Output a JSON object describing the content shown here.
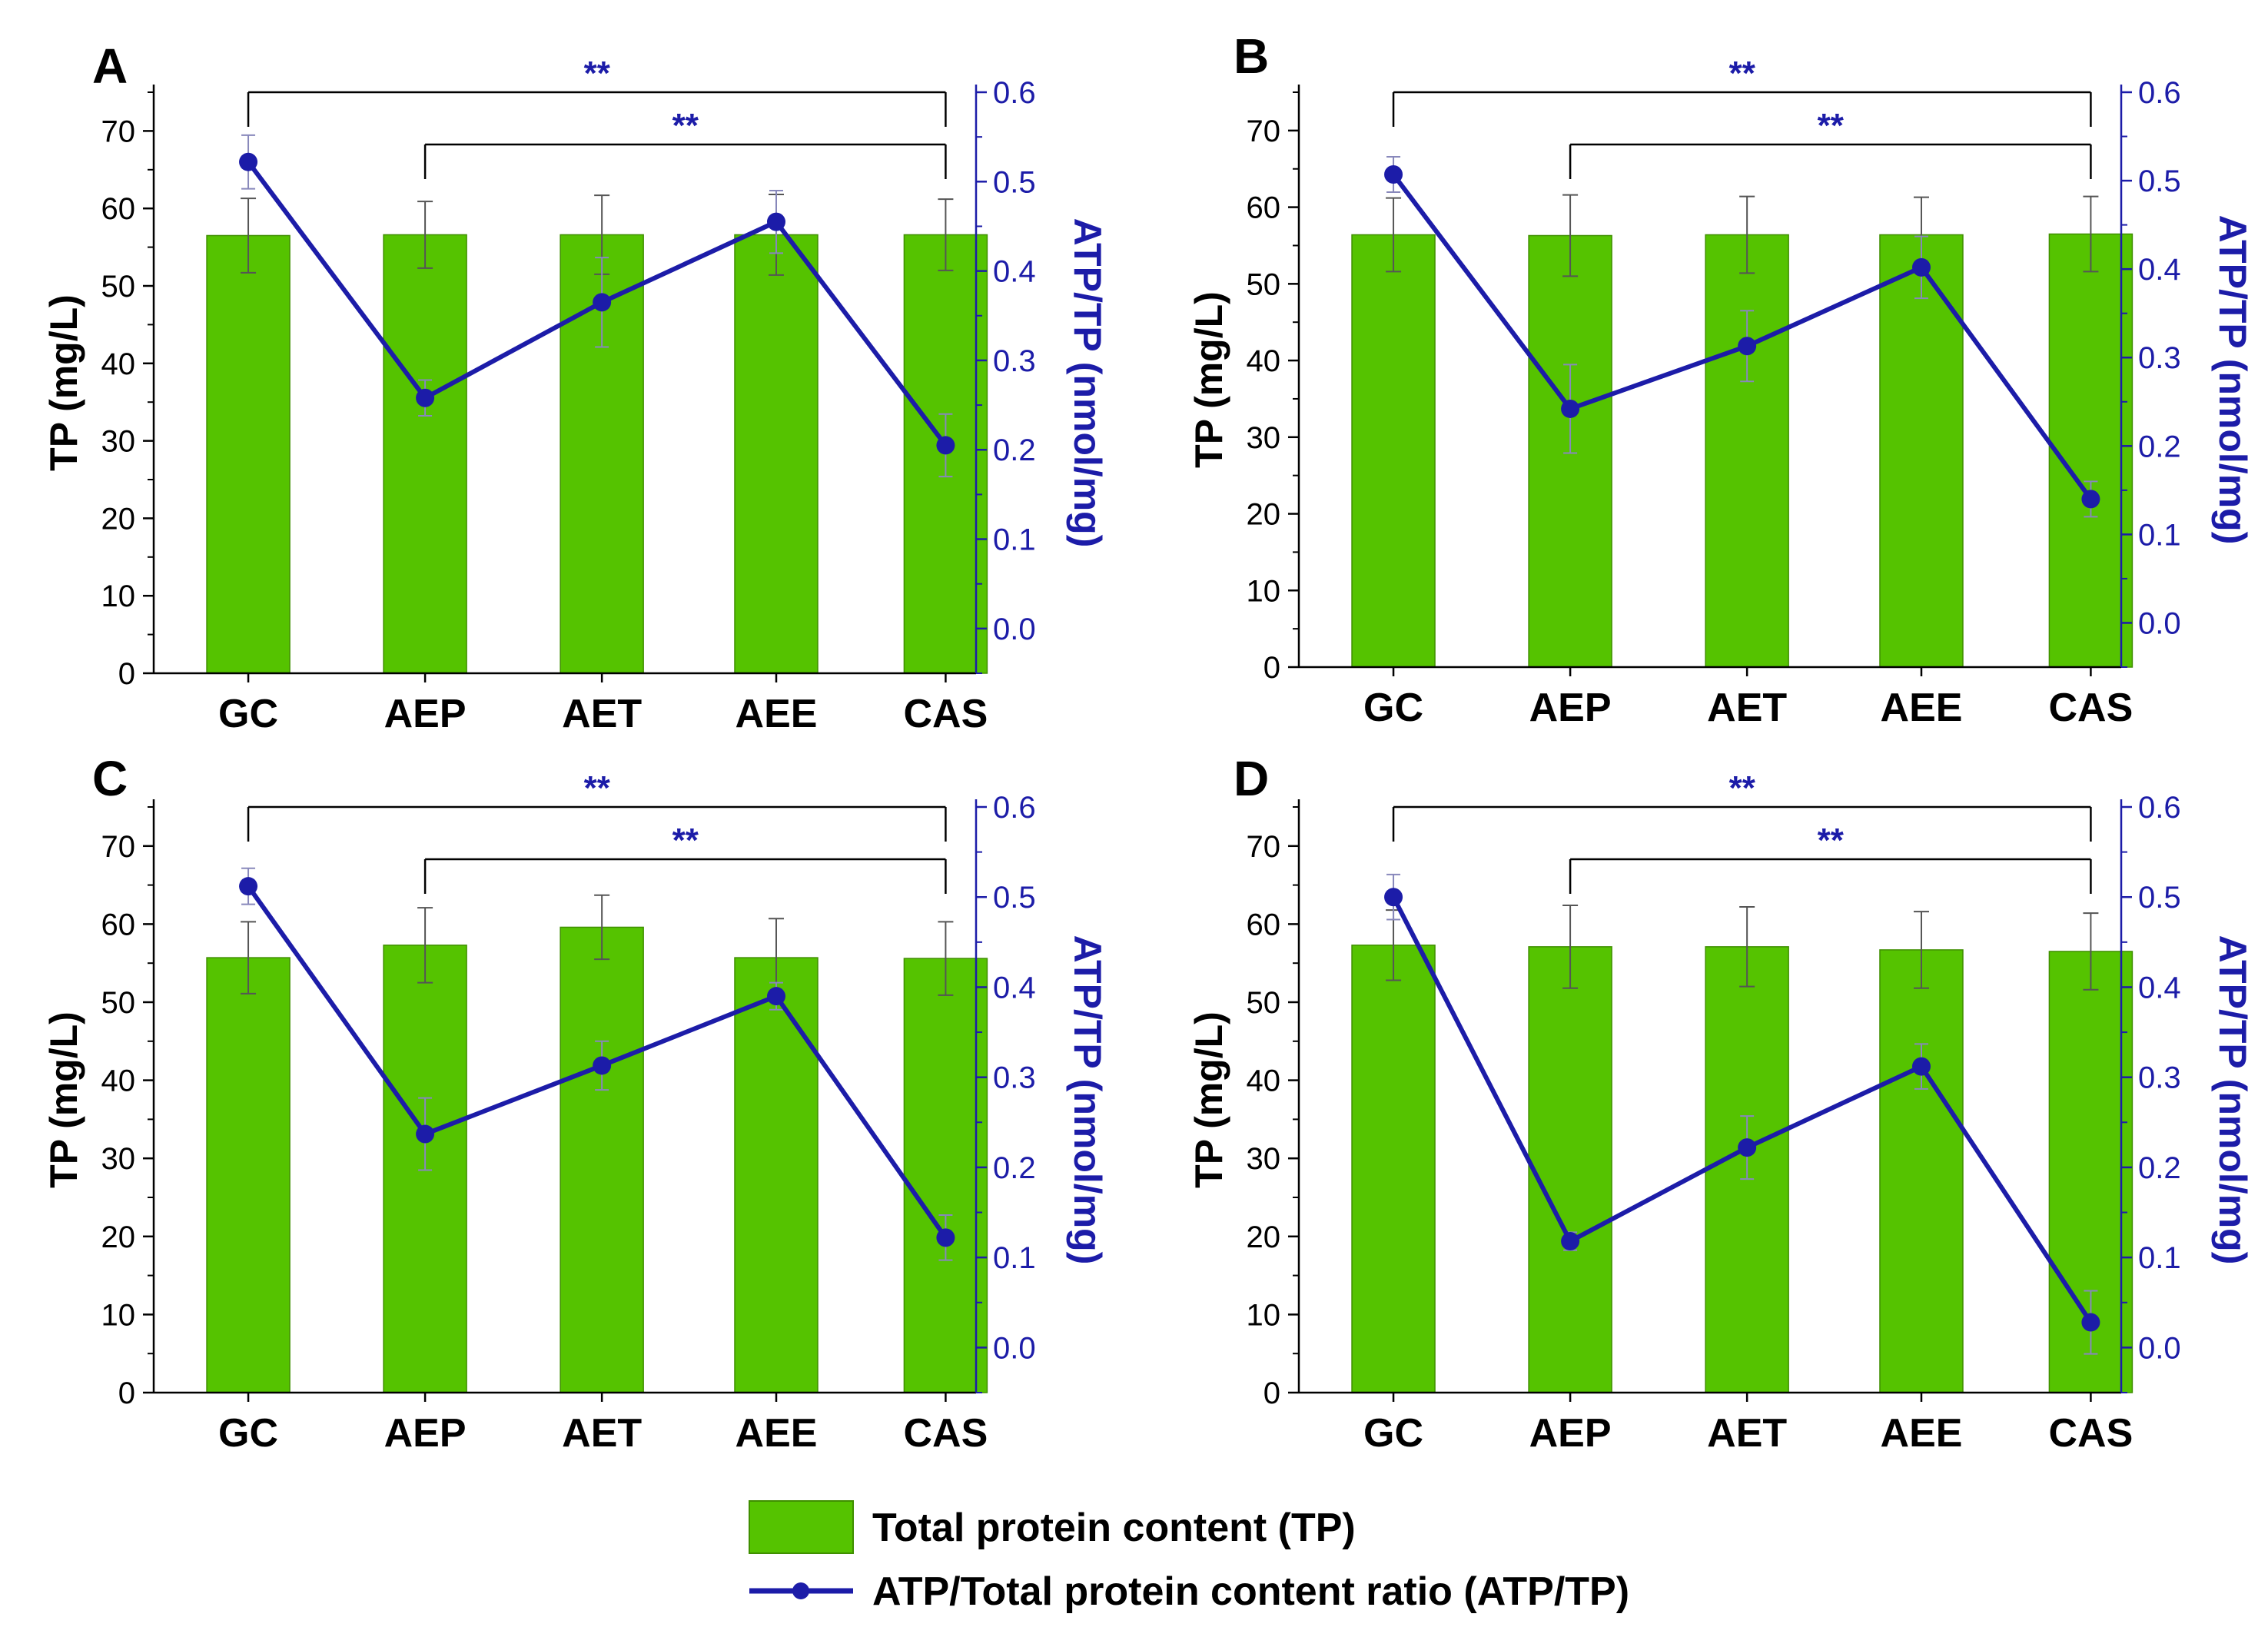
{
  "chart_data": [
    {
      "panel": "A",
      "type": "bar",
      "categories": [
        "GC",
        "AEP",
        "AET",
        "AEE",
        "CAS"
      ],
      "ylabel": "TP (mg/L)",
      "ylabel_right": "ATP/TP (nmol/mg)",
      "ylim": [
        0,
        75
      ],
      "y_ticks": [
        "0",
        "10",
        "20",
        "30",
        "40",
        "50",
        "60",
        "70"
      ],
      "ylim_right": [
        -0.05,
        0.6
      ],
      "y2_ticks": [
        "0.0",
        "0.1",
        "0.2",
        "0.3",
        "0.4",
        "0.5",
        "0.6"
      ],
      "series": [
        {
          "name": "Total protein content (TP)",
          "kind": "bar",
          "color": "#55c300",
          "values": [
            56.5,
            56.6,
            56.6,
            56.6,
            56.6
          ],
          "errors": [
            4.8,
            4.3,
            5.1,
            5.2,
            4.6
          ]
        },
        {
          "name": "ATP/Total protein content ratio (ATP/TP)",
          "kind": "line",
          "axis": "right",
          "color": "#1c1ca8",
          "values": [
            0.522,
            0.258,
            0.365,
            0.455,
            0.205
          ],
          "errors": [
            0.03,
            0.02,
            0.05,
            0.035,
            0.035
          ]
        }
      ],
      "significance": [
        {
          "from": "GC",
          "to": "CAS",
          "label": "**"
        },
        {
          "from": "AEP",
          "to": "CAS",
          "label": "**"
        }
      ]
    },
    {
      "panel": "B",
      "type": "bar",
      "categories": [
        "GC",
        "AEP",
        "AET",
        "AEE",
        "CAS"
      ],
      "ylabel": "TP (mg/L)",
      "ylabel_right": "ATP/TP (nmol/mg)",
      "ylim": [
        0,
        75
      ],
      "y_ticks": [
        "0",
        "10",
        "20",
        "30",
        "40",
        "50",
        "60",
        "70"
      ],
      "ylim_right": [
        -0.05,
        0.6
      ],
      "y2_ticks": [
        "0.0",
        "0.1",
        "0.2",
        "0.3",
        "0.4",
        "0.5",
        "0.6"
      ],
      "series": [
        {
          "name": "Total protein content (TP)",
          "kind": "bar",
          "color": "#55c300",
          "values": [
            56.4,
            56.3,
            56.4,
            56.4,
            56.5
          ],
          "errors": [
            4.8,
            5.3,
            5.0,
            4.9,
            4.9
          ]
        },
        {
          "name": "ATP/Total protein content ratio (ATP/TP)",
          "kind": "line",
          "axis": "right",
          "color": "#1c1ca8",
          "values": [
            0.507,
            0.242,
            0.313,
            0.402,
            0.14
          ],
          "errors": [
            0.02,
            0.05,
            0.04,
            0.035,
            0.02
          ]
        }
      ],
      "significance": [
        {
          "from": "GC",
          "to": "CAS",
          "label": "**"
        },
        {
          "from": "AEP",
          "to": "CAS",
          "label": "**"
        }
      ]
    },
    {
      "panel": "C",
      "type": "bar",
      "categories": [
        "GC",
        "AEP",
        "AET",
        "AEE",
        "CAS"
      ],
      "ylabel": "TP (mg/L)",
      "ylabel_right": "ATP/TP (nmol/mg)",
      "ylim": [
        0,
        75
      ],
      "y_ticks": [
        "0",
        "10",
        "20",
        "30",
        "40",
        "50",
        "60",
        "70"
      ],
      "ylim_right": [
        -0.05,
        0.6
      ],
      "y2_ticks": [
        "0.0",
        "0.1",
        "0.2",
        "0.3",
        "0.4",
        "0.5",
        "0.6"
      ],
      "series": [
        {
          "name": "Total protein content (TP)",
          "kind": "bar",
          "color": "#55c300",
          "values": [
            55.7,
            57.3,
            59.6,
            55.7,
            55.6
          ],
          "errors": [
            4.6,
            4.8,
            4.1,
            5.0,
            4.7
          ]
        },
        {
          "name": "ATP/Total protein content ratio (ATP/TP)",
          "kind": "line",
          "axis": "right",
          "color": "#1c1ca8",
          "values": [
            0.512,
            0.237,
            0.313,
            0.39,
            0.122
          ],
          "errors": [
            0.02,
            0.04,
            0.027,
            0.015,
            0.025
          ]
        }
      ],
      "significance": [
        {
          "from": "GC",
          "to": "CAS",
          "label": "**"
        },
        {
          "from": "AEP",
          "to": "CAS",
          "label": "**"
        }
      ]
    },
    {
      "panel": "D",
      "type": "bar",
      "categories": [
        "GC",
        "AEP",
        "AET",
        "AEE",
        "CAS"
      ],
      "ylabel": "TP (mg/L)",
      "ylabel_right": "ATP/TP (nmol/mg)",
      "ylim": [
        0,
        75
      ],
      "y_ticks": [
        "0",
        "10",
        "20",
        "30",
        "40",
        "50",
        "60",
        "70"
      ],
      "ylim_right": [
        -0.05,
        0.6
      ],
      "y2_ticks": [
        "0.0",
        "0.1",
        "0.2",
        "0.3",
        "0.4",
        "0.5",
        "0.6"
      ],
      "series": [
        {
          "name": "Total protein content (TP)",
          "kind": "bar",
          "color": "#55c300",
          "values": [
            57.3,
            57.1,
            57.1,
            56.7,
            56.5
          ],
          "errors": [
            4.5,
            5.3,
            5.1,
            4.9,
            4.9
          ]
        },
        {
          "name": "ATP/Total protein content ratio (ATP/TP)",
          "kind": "line",
          "axis": "right",
          "color": "#1c1ca8",
          "values": [
            0.5,
            0.118,
            0.222,
            0.312,
            0.028
          ],
          "errors": [
            0.025,
            0.01,
            0.035,
            0.025,
            0.035
          ]
        }
      ],
      "significance": [
        {
          "from": "GC",
          "to": "CAS",
          "label": "**"
        },
        {
          "from": "AEP",
          "to": "CAS",
          "label": "**"
        }
      ]
    }
  ],
  "legend": {
    "bar_label": "Total protein content (TP)",
    "line_label": "ATP/Total protein content ratio (ATP/TP)",
    "bar_color": "#55c300",
    "line_color": "#1c1ca8"
  }
}
